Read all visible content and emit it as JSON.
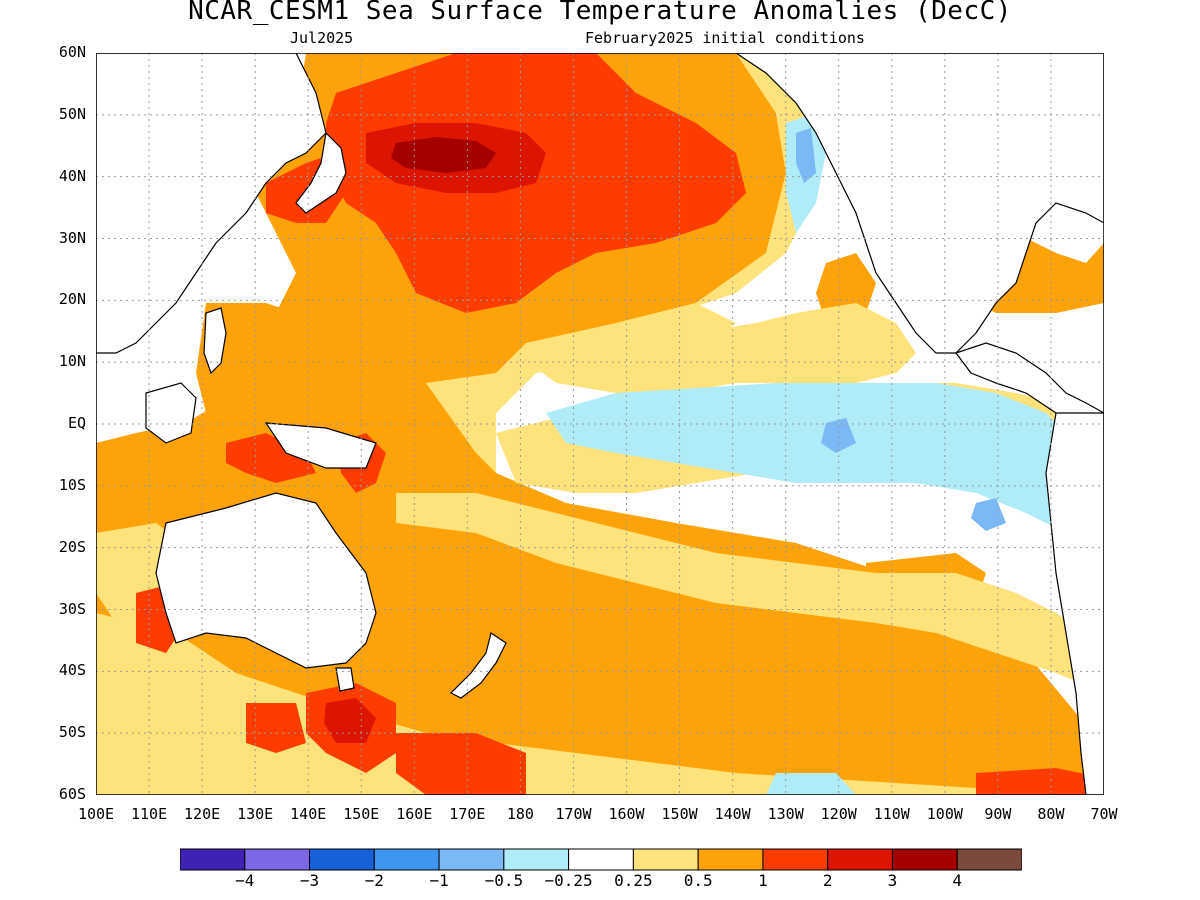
{
  "title": "NCAR_CESM1 Sea Surface Temperature Anomalies (DecC)",
  "subtitle_left": "Jul2025",
  "subtitle_right": "February2025 initial conditions",
  "chart_data": {
    "type": "heatmap",
    "grid": true,
    "lat_labels": [
      "60N",
      "50N",
      "40N",
      "30N",
      "20N",
      "10N",
      "EQ",
      "10S",
      "20S",
      "30S",
      "40S",
      "50S",
      "60S"
    ],
    "lon_labels": [
      "100E",
      "110E",
      "120E",
      "130E",
      "140E",
      "150E",
      "160E",
      "170E",
      "180",
      "170W",
      "160W",
      "150W",
      "140W",
      "130W",
      "120W",
      "110W",
      "100W",
      "90W",
      "80W",
      "70W"
    ],
    "colorbar": {
      "colors": [
        "#3f22b5",
        "#7c68e4",
        "#1660d8",
        "#3d95f0",
        "#7ab8f6",
        "#b0ecf8",
        "#ffffff",
        "#fee27b",
        "#fea20a",
        "#ff3c00",
        "#dc1500",
        "#a40000",
        "#7a4a3c"
      ],
      "tick_labels": [
        "-4",
        "-3",
        "-2",
        "-1",
        "-0.5",
        "-0.25",
        "0.25",
        "0.5",
        "1",
        "2",
        "3",
        "4"
      ]
    }
  }
}
